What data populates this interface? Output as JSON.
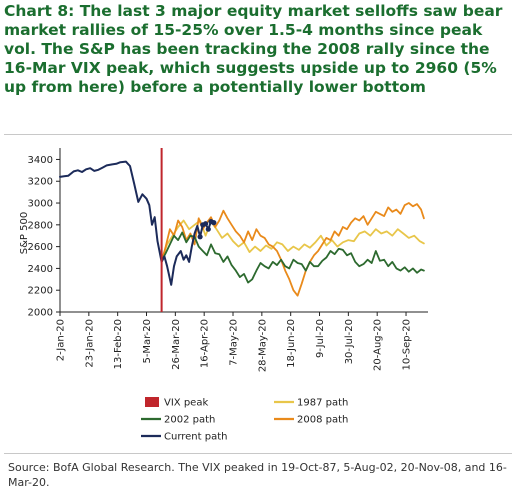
{
  "title": "Chart 8: The last 3 major equity market selloffs saw bear market rallies of 15-25% over 1.5-4 months since peak vol. The S&P has been tracking the 2008 rally since the 16-Mar VIX peak, which suggests upside up to 2960 (5% up from here) before a potentially lower bottom",
  "source": "Source: BofA Global Research. The VIX peaked in 19-Oct-87, 5-Aug-02, 20-Nov-08, and 16-Mar-20.",
  "chart_data": {
    "type": "line",
    "ylabel": "S&P 500",
    "ylim": [
      2000,
      3450
    ],
    "yticks": [
      2000,
      2200,
      2400,
      2600,
      2800,
      3000,
      3200,
      3400
    ],
    "x_start": "2020-01-02",
    "xlim": [
      "2020-01-02",
      "2020-09-26"
    ],
    "xticks": [
      "2-Jan-20",
      "23-Jan-20",
      "13-Feb-20",
      "5-Mar-20",
      "26-Mar-20",
      "16-Apr-20",
      "7-May-20",
      "28-May-20",
      "18-Jun-20",
      "9-Jul-20",
      "30-Jul-20",
      "20-Aug-20",
      "10-Sep-20"
    ],
    "vix_peak": "2020-03-16",
    "legend_placement": "bottom",
    "legend": [
      "VIX peak",
      "2002 path",
      "Current path",
      "1987 path",
      "2008 path"
    ],
    "series": [
      {
        "name": "Current path",
        "color": "#1c2b5a",
        "x": [
          "2020-01-02",
          "2020-01-05",
          "2020-01-08",
          "2020-01-12",
          "2020-01-15",
          "2020-01-18",
          "2020-01-21",
          "2020-01-24",
          "2020-01-27",
          "2020-01-30",
          "2020-02-02",
          "2020-02-05",
          "2020-02-09",
          "2020-02-12",
          "2020-02-15",
          "2020-02-19",
          "2020-02-22",
          "2020-02-25",
          "2020-02-28",
          "2020-03-02",
          "2020-03-05",
          "2020-03-07",
          "2020-03-09",
          "2020-03-11",
          "2020-03-13",
          "2020-03-16",
          "2020-03-18",
          "2020-03-20",
          "2020-03-23",
          "2020-03-25",
          "2020-03-27",
          "2020-03-30",
          "2020-04-01",
          "2020-04-03",
          "2020-04-05",
          "2020-04-07",
          "2020-04-09",
          "2020-04-11",
          "2020-04-13",
          "2020-04-15",
          "2020-04-17",
          "2020-04-19",
          "2020-04-21",
          "2020-04-23"
        ],
        "y": [
          3240,
          3245,
          3250,
          3290,
          3300,
          3285,
          3310,
          3320,
          3295,
          3305,
          3325,
          3345,
          3355,
          3360,
          3375,
          3380,
          3340,
          3180,
          3010,
          3080,
          3040,
          2980,
          2800,
          2870,
          2650,
          2460,
          2510,
          2420,
          2250,
          2420,
          2510,
          2560,
          2480,
          2520,
          2460,
          2600,
          2720,
          2790,
          2690,
          2800,
          2810,
          2760,
          2830,
          2820
        ]
      },
      {
        "name": "2002 path",
        "color": "#2d6a2f",
        "x": [
          "2020-03-16",
          "2020-03-19",
          "2020-03-22",
          "2020-03-25",
          "2020-03-28",
          "2020-03-31",
          "2020-04-03",
          "2020-04-06",
          "2020-04-09",
          "2020-04-12",
          "2020-04-15",
          "2020-04-18",
          "2020-04-21",
          "2020-04-24",
          "2020-04-27",
          "2020-04-30",
          "2020-05-03",
          "2020-05-06",
          "2020-05-09",
          "2020-05-12",
          "2020-05-15",
          "2020-05-18",
          "2020-05-21",
          "2020-05-24",
          "2020-05-27",
          "2020-05-30",
          "2020-06-02",
          "2020-06-05",
          "2020-06-08",
          "2020-06-11",
          "2020-06-14",
          "2020-06-17",
          "2020-06-20",
          "2020-06-23",
          "2020-06-26",
          "2020-06-29",
          "2020-07-02",
          "2020-07-05",
          "2020-07-08",
          "2020-07-11",
          "2020-07-14",
          "2020-07-17",
          "2020-07-20",
          "2020-07-23",
          "2020-07-26",
          "2020-07-29",
          "2020-08-01",
          "2020-08-04",
          "2020-08-07",
          "2020-08-10",
          "2020-08-13",
          "2020-08-16",
          "2020-08-19",
          "2020-08-22",
          "2020-08-25",
          "2020-08-28",
          "2020-08-31",
          "2020-09-03",
          "2020-09-06",
          "2020-09-09",
          "2020-09-12",
          "2020-09-15",
          "2020-09-18",
          "2020-09-21",
          "2020-09-23"
        ],
        "y": [
          2470,
          2540,
          2620,
          2700,
          2660,
          2730,
          2640,
          2700,
          2690,
          2600,
          2560,
          2520,
          2620,
          2540,
          2530,
          2460,
          2510,
          2430,
          2380,
          2320,
          2350,
          2270,
          2300,
          2380,
          2450,
          2420,
          2400,
          2460,
          2430,
          2480,
          2420,
          2400,
          2480,
          2450,
          2440,
          2380,
          2460,
          2420,
          2420,
          2470,
          2500,
          2560,
          2530,
          2580,
          2570,
          2520,
          2540,
          2460,
          2420,
          2440,
          2480,
          2450,
          2560,
          2470,
          2480,
          2420,
          2460,
          2400,
          2380,
          2410,
          2370,
          2400,
          2360,
          2390,
          2380
        ]
      },
      {
        "name": "1987 path",
        "color": "#e8c64a",
        "x": [
          "2020-03-16",
          "2020-03-20",
          "2020-03-24",
          "2020-03-28",
          "2020-04-01",
          "2020-04-05",
          "2020-04-09",
          "2020-04-13",
          "2020-04-17",
          "2020-04-21",
          "2020-04-25",
          "2020-04-29",
          "2020-05-03",
          "2020-05-07",
          "2020-05-11",
          "2020-05-15",
          "2020-05-19",
          "2020-05-23",
          "2020-05-27",
          "2020-05-31",
          "2020-06-04",
          "2020-06-08",
          "2020-06-12",
          "2020-06-16",
          "2020-06-20",
          "2020-06-24",
          "2020-06-28",
          "2020-07-02",
          "2020-07-06",
          "2020-07-10",
          "2020-07-14",
          "2020-07-18",
          "2020-07-22",
          "2020-07-26",
          "2020-07-30",
          "2020-08-03",
          "2020-08-07",
          "2020-08-11",
          "2020-08-15",
          "2020-08-19",
          "2020-08-23",
          "2020-08-27",
          "2020-08-31",
          "2020-09-04",
          "2020-09-08",
          "2020-09-12",
          "2020-09-16",
          "2020-09-20",
          "2020-09-23"
        ],
        "y": [
          2480,
          2620,
          2700,
          2780,
          2840,
          2760,
          2800,
          2840,
          2700,
          2830,
          2760,
          2680,
          2720,
          2650,
          2600,
          2640,
          2550,
          2600,
          2560,
          2610,
          2580,
          2640,
          2620,
          2560,
          2600,
          2570,
          2620,
          2590,
          2640,
          2700,
          2610,
          2660,
          2600,
          2640,
          2660,
          2650,
          2720,
          2740,
          2700,
          2760,
          2720,
          2740,
          2700,
          2760,
          2720,
          2680,
          2700,
          2650,
          2630
        ]
      },
      {
        "name": "2008 path",
        "color": "#e98a1b",
        "x": [
          "2020-03-16",
          "2020-03-19",
          "2020-03-22",
          "2020-03-25",
          "2020-03-28",
          "2020-03-31",
          "2020-04-03",
          "2020-04-06",
          "2020-04-09",
          "2020-04-12",
          "2020-04-15",
          "2020-04-18",
          "2020-04-21",
          "2020-04-24",
          "2020-04-27",
          "2020-04-30",
          "2020-05-03",
          "2020-05-06",
          "2020-05-09",
          "2020-05-12",
          "2020-05-15",
          "2020-05-18",
          "2020-05-21",
          "2020-05-24",
          "2020-05-27",
          "2020-05-30",
          "2020-06-02",
          "2020-06-05",
          "2020-06-08",
          "2020-06-11",
          "2020-06-14",
          "2020-06-17",
          "2020-06-20",
          "2020-06-23",
          "2020-06-26",
          "2020-06-29",
          "2020-07-02",
          "2020-07-05",
          "2020-07-08",
          "2020-07-11",
          "2020-07-14",
          "2020-07-17",
          "2020-07-20",
          "2020-07-23",
          "2020-07-26",
          "2020-07-29",
          "2020-08-01",
          "2020-08-04",
          "2020-08-07",
          "2020-08-10",
          "2020-08-13",
          "2020-08-16",
          "2020-08-19",
          "2020-08-22",
          "2020-08-25",
          "2020-08-28",
          "2020-08-31",
          "2020-09-03",
          "2020-09-06",
          "2020-09-09",
          "2020-09-12",
          "2020-09-15",
          "2020-09-18",
          "2020-09-21",
          "2020-09-23"
        ],
        "y": [
          2460,
          2600,
          2760,
          2700,
          2840,
          2780,
          2660,
          2720,
          2620,
          2860,
          2760,
          2820,
          2870,
          2780,
          2840,
          2930,
          2860,
          2800,
          2740,
          2700,
          2640,
          2740,
          2660,
          2760,
          2700,
          2680,
          2620,
          2600,
          2560,
          2480,
          2380,
          2300,
          2200,
          2150,
          2260,
          2380,
          2460,
          2520,
          2560,
          2620,
          2680,
          2660,
          2740,
          2700,
          2780,
          2760,
          2820,
          2860,
          2840,
          2880,
          2800,
          2860,
          2920,
          2900,
          2880,
          2960,
          2920,
          2940,
          2900,
          2980,
          3000,
          2970,
          2990,
          2940,
          2860
        ]
      }
    ]
  }
}
